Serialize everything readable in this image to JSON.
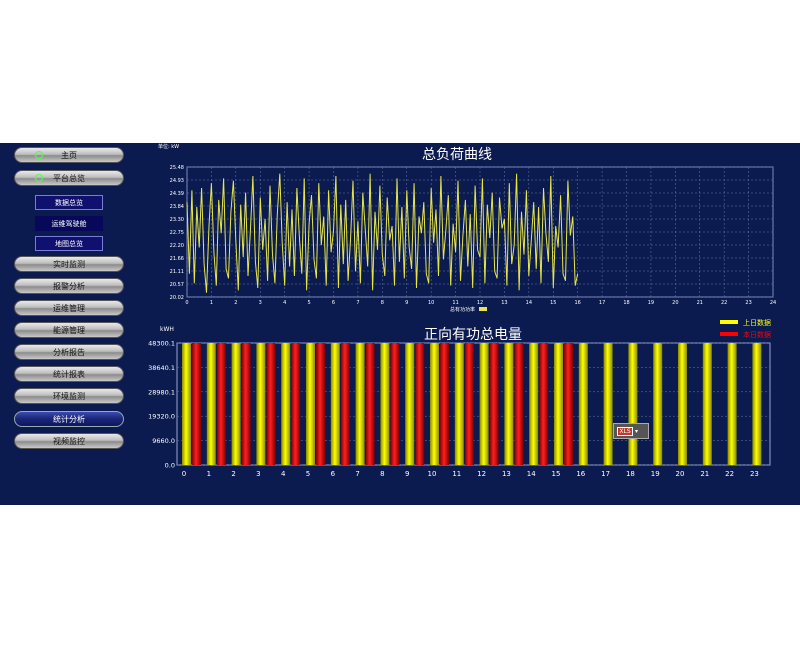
{
  "sidebar": {
    "items": [
      {
        "label": "主页",
        "type": "pill",
        "icon": "home-circle-icon"
      },
      {
        "label": "平台总览",
        "type": "pill",
        "icon": "platform-gear-icon"
      },
      {
        "label": "数据总览",
        "type": "sub"
      },
      {
        "label": "运维驾驶舱",
        "type": "sub"
      },
      {
        "label": "地图总览",
        "type": "sub"
      },
      {
        "label": "实时监测",
        "type": "pill"
      },
      {
        "label": "报警分析",
        "type": "pill"
      },
      {
        "label": "运维管理",
        "type": "pill"
      },
      {
        "label": "能源管理",
        "type": "pill"
      },
      {
        "label": "分析报告",
        "type": "pill"
      },
      {
        "label": "统计报表",
        "type": "pill"
      },
      {
        "label": "环境监测",
        "type": "pill"
      },
      {
        "label": "统计分析",
        "type": "pill",
        "active": true
      },
      {
        "label": "视频监控",
        "type": "pill"
      }
    ]
  },
  "load_chart_unit": "单位: kW",
  "energy_chart_unit": "kWH",
  "widget": {
    "icon": "export-excel-icon",
    "label": "XLS"
  },
  "chart_data": [
    {
      "type": "line",
      "title": "总负荷曲线",
      "legend": [
        "总有功功率"
      ],
      "legend_position": "bottom-center",
      "ylim": [
        20.02,
        25.48
      ],
      "y_ticks": [
        "25.48",
        "24.93",
        "24.39",
        "23.84",
        "23.30",
        "22.75",
        "22.20",
        "21.66",
        "21.11",
        "20.57",
        "20.02"
      ],
      "x_ticks": [
        0,
        1,
        2,
        3,
        4,
        5,
        6,
        7,
        8,
        9,
        10,
        11,
        12,
        13,
        14,
        15,
        16,
        17,
        18,
        19,
        20,
        21,
        22,
        23,
        24
      ],
      "xlim": [
        0,
        24
      ],
      "grid": true,
      "line_color": "#e6e64c",
      "series_values_start_hour": 0,
      "series_values_end_hour": 16,
      "series": [
        {
          "name": "总有功功率",
          "values": [
            24.0,
            21.0,
            24.5,
            20.6,
            23.8,
            22.1,
            24.6,
            21.4,
            20.2,
            23.0,
            24.8,
            21.9,
            20.5,
            24.1,
            22.7,
            25.0,
            21.2,
            20.8,
            23.6,
            24.9,
            22.4,
            20.3,
            23.9,
            21.7,
            24.4,
            20.9,
            22.9,
            25.1,
            21.5,
            20.4,
            24.2,
            22.0,
            23.3,
            20.7,
            24.7,
            21.8,
            20.6,
            23.5,
            25.2,
            22.3,
            20.5,
            24.0,
            21.3,
            23.7,
            20.9,
            24.6,
            22.6,
            21.0,
            25.0,
            20.3,
            23.1,
            24.3,
            21.6,
            20.8,
            24.8,
            22.2,
            23.4,
            20.5,
            24.5,
            21.9,
            22.8,
            25.1,
            20.4,
            23.9,
            21.4,
            24.1,
            20.7,
            22.5,
            24.9,
            21.1,
            23.2,
            20.6,
            24.4,
            22.9,
            21.3,
            25.2,
            20.3,
            23.6,
            22.0,
            24.7,
            21.8,
            20.9,
            24.2,
            22.4,
            23.0,
            20.5,
            25.0,
            21.5,
            23.8,
            20.8,
            24.5,
            22.1,
            21.2,
            24.8,
            20.4,
            23.4,
            22.7,
            24.0,
            21.0,
            20.6,
            24.6,
            22.3,
            23.7,
            20.9,
            25.1,
            21.6,
            22.8,
            24.3,
            20.5,
            23.1,
            21.9,
            24.9,
            20.7,
            22.6,
            24.1,
            21.3,
            23.5,
            20.4,
            24.7,
            22.0,
            21.7,
            25.0,
            20.6,
            23.9,
            22.5,
            24.4,
            21.1,
            20.8,
            24.2,
            22.9,
            23.3,
            20.5,
            24.8,
            21.4,
            22.2,
            25.2,
            20.3,
            23.6,
            21.8,
            24.5,
            20.9,
            22.4,
            24.0,
            21.2,
            23.8,
            20.6,
            24.6,
            22.7,
            21.5,
            25.1,
            20.4,
            23.0,
            22.1,
            24.3,
            21.0,
            20.7,
            24.9,
            22.6,
            23.4,
            20.5,
            21.0
          ]
        }
      ]
    },
    {
      "type": "bar",
      "title": "正向有功总电量",
      "legend": [
        "上日数据",
        "本日数据"
      ],
      "legend_position": "top-right",
      "legend_colors": [
        "#ffff00",
        "#ff0000"
      ],
      "y_ticks": [
        "48300.1",
        "38640.1",
        "28980.1",
        "19320.0",
        "9660.0",
        "0.0"
      ],
      "ylim": [
        0,
        48300.1
      ],
      "categories": [
        "0",
        "1",
        "2",
        "3",
        "4",
        "5",
        "6",
        "7",
        "8",
        "9",
        "10",
        "11",
        "12",
        "13",
        "14",
        "15",
        "16",
        "17",
        "18",
        "19",
        "20",
        "21",
        "22",
        "23"
      ],
      "series": [
        {
          "name": "上日数据",
          "color": "#ffff00",
          "values": [
            48300.1,
            48300.1,
            48300.1,
            48300.1,
            48300.1,
            48300.1,
            48300.1,
            48300.1,
            48300.1,
            48300.1,
            48300.1,
            48300.1,
            48300.1,
            48300.1,
            48300.1,
            48300.1,
            48300.1,
            48300.1,
            48300.1,
            48300.1,
            48300.1,
            48300.1,
            48300.1,
            48300.1
          ]
        },
        {
          "name": "本日数据",
          "color": "#ff0000",
          "values": [
            48300.1,
            48300.1,
            48300.1,
            48300.1,
            48300.1,
            48300.1,
            48300.1,
            48300.1,
            48300.1,
            48300.1,
            48300.1,
            48300.1,
            48300.1,
            48300.1,
            48300.1,
            48300.1,
            0,
            0,
            0,
            0,
            0,
            0,
            0,
            0
          ]
        }
      ]
    }
  ]
}
